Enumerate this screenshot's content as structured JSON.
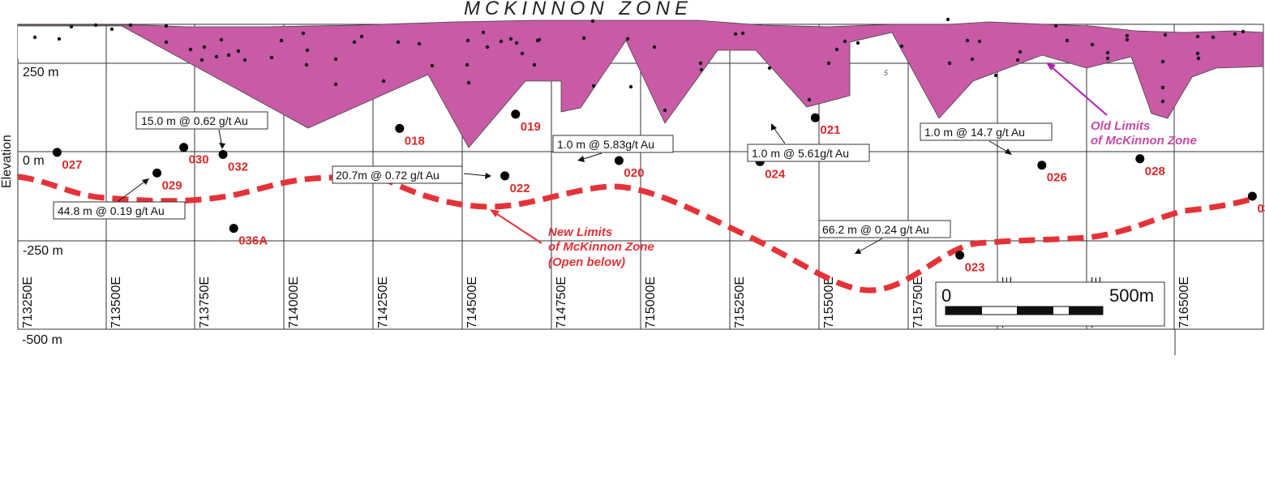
{
  "title": "MCKINNON ZONE",
  "axis": {
    "y_title": "Elevation",
    "elevations": [
      "250 m",
      "0 m",
      "-250 m",
      "-500 m"
    ],
    "eastings": [
      "713250E",
      "713500E",
      "713750E",
      "714000E",
      "714250E",
      "714500E",
      "714750E",
      "715000E",
      "715250E",
      "715500E",
      "715750E",
      "716000E",
      "716250E",
      "716500E"
    ]
  },
  "holes": [
    {
      "label": "027",
      "easting": 713360,
      "elevation": -2
    },
    {
      "label": "029",
      "easting": 713640,
      "elevation": -60
    },
    {
      "label": "030",
      "easting": 713715,
      "elevation": 12
    },
    {
      "label": "032",
      "easting": 713825,
      "elevation": -8
    },
    {
      "label": "036A",
      "easting": 713855,
      "elevation": -215
    },
    {
      "label": "018",
      "easting": 714320,
      "elevation": 65
    },
    {
      "label": "022",
      "easting": 714615,
      "elevation": -68
    },
    {
      "label": "019",
      "easting": 714645,
      "elevation": 105
    },
    {
      "label": "020",
      "easting": 714935,
      "elevation": -25
    },
    {
      "label": "024",
      "easting": 715330,
      "elevation": -28
    },
    {
      "label": "021",
      "easting": 715485,
      "elevation": 95
    },
    {
      "label": "023",
      "easting": 715890,
      "elevation": -290
    },
    {
      "label": "026",
      "easting": 716120,
      "elevation": -38
    },
    {
      "label": "028",
      "easting": 716395,
      "elevation": -20
    },
    {
      "label": "035",
      "easting": 716710,
      "elevation": -125
    },
    {
      "label": "037",
      "easting": 716930,
      "elevation": -225
    }
  ],
  "intercepts": [
    {
      "text": "15.0 m @ 0.62 g/t Au"
    },
    {
      "text": "44.8 m @ 0.19 g/t Au"
    },
    {
      "text": "20.7m @ 0.72 g/t Au"
    },
    {
      "text": "1.0 m @ 5.83g/t Au"
    },
    {
      "text": "1.0 m @ 5.61g/t Au"
    },
    {
      "text": "1.0 m @ 14.7 g/t Au"
    },
    {
      "text": "66.2 m @ 0.24 g/t Au"
    }
  ],
  "new_limits": {
    "line1": "New Limits",
    "line2": "of McKinnon Zone",
    "line3": "(Open below)",
    "color": "#e53238"
  },
  "old_limits": {
    "line1": "Old Limits",
    "line2": "of McKinnon Zone",
    "color": "#c84aa8",
    "fill": "#c85aa6"
  },
  "scale_bar": {
    "start": "0",
    "end": "500m"
  },
  "stray_mark": "5"
}
